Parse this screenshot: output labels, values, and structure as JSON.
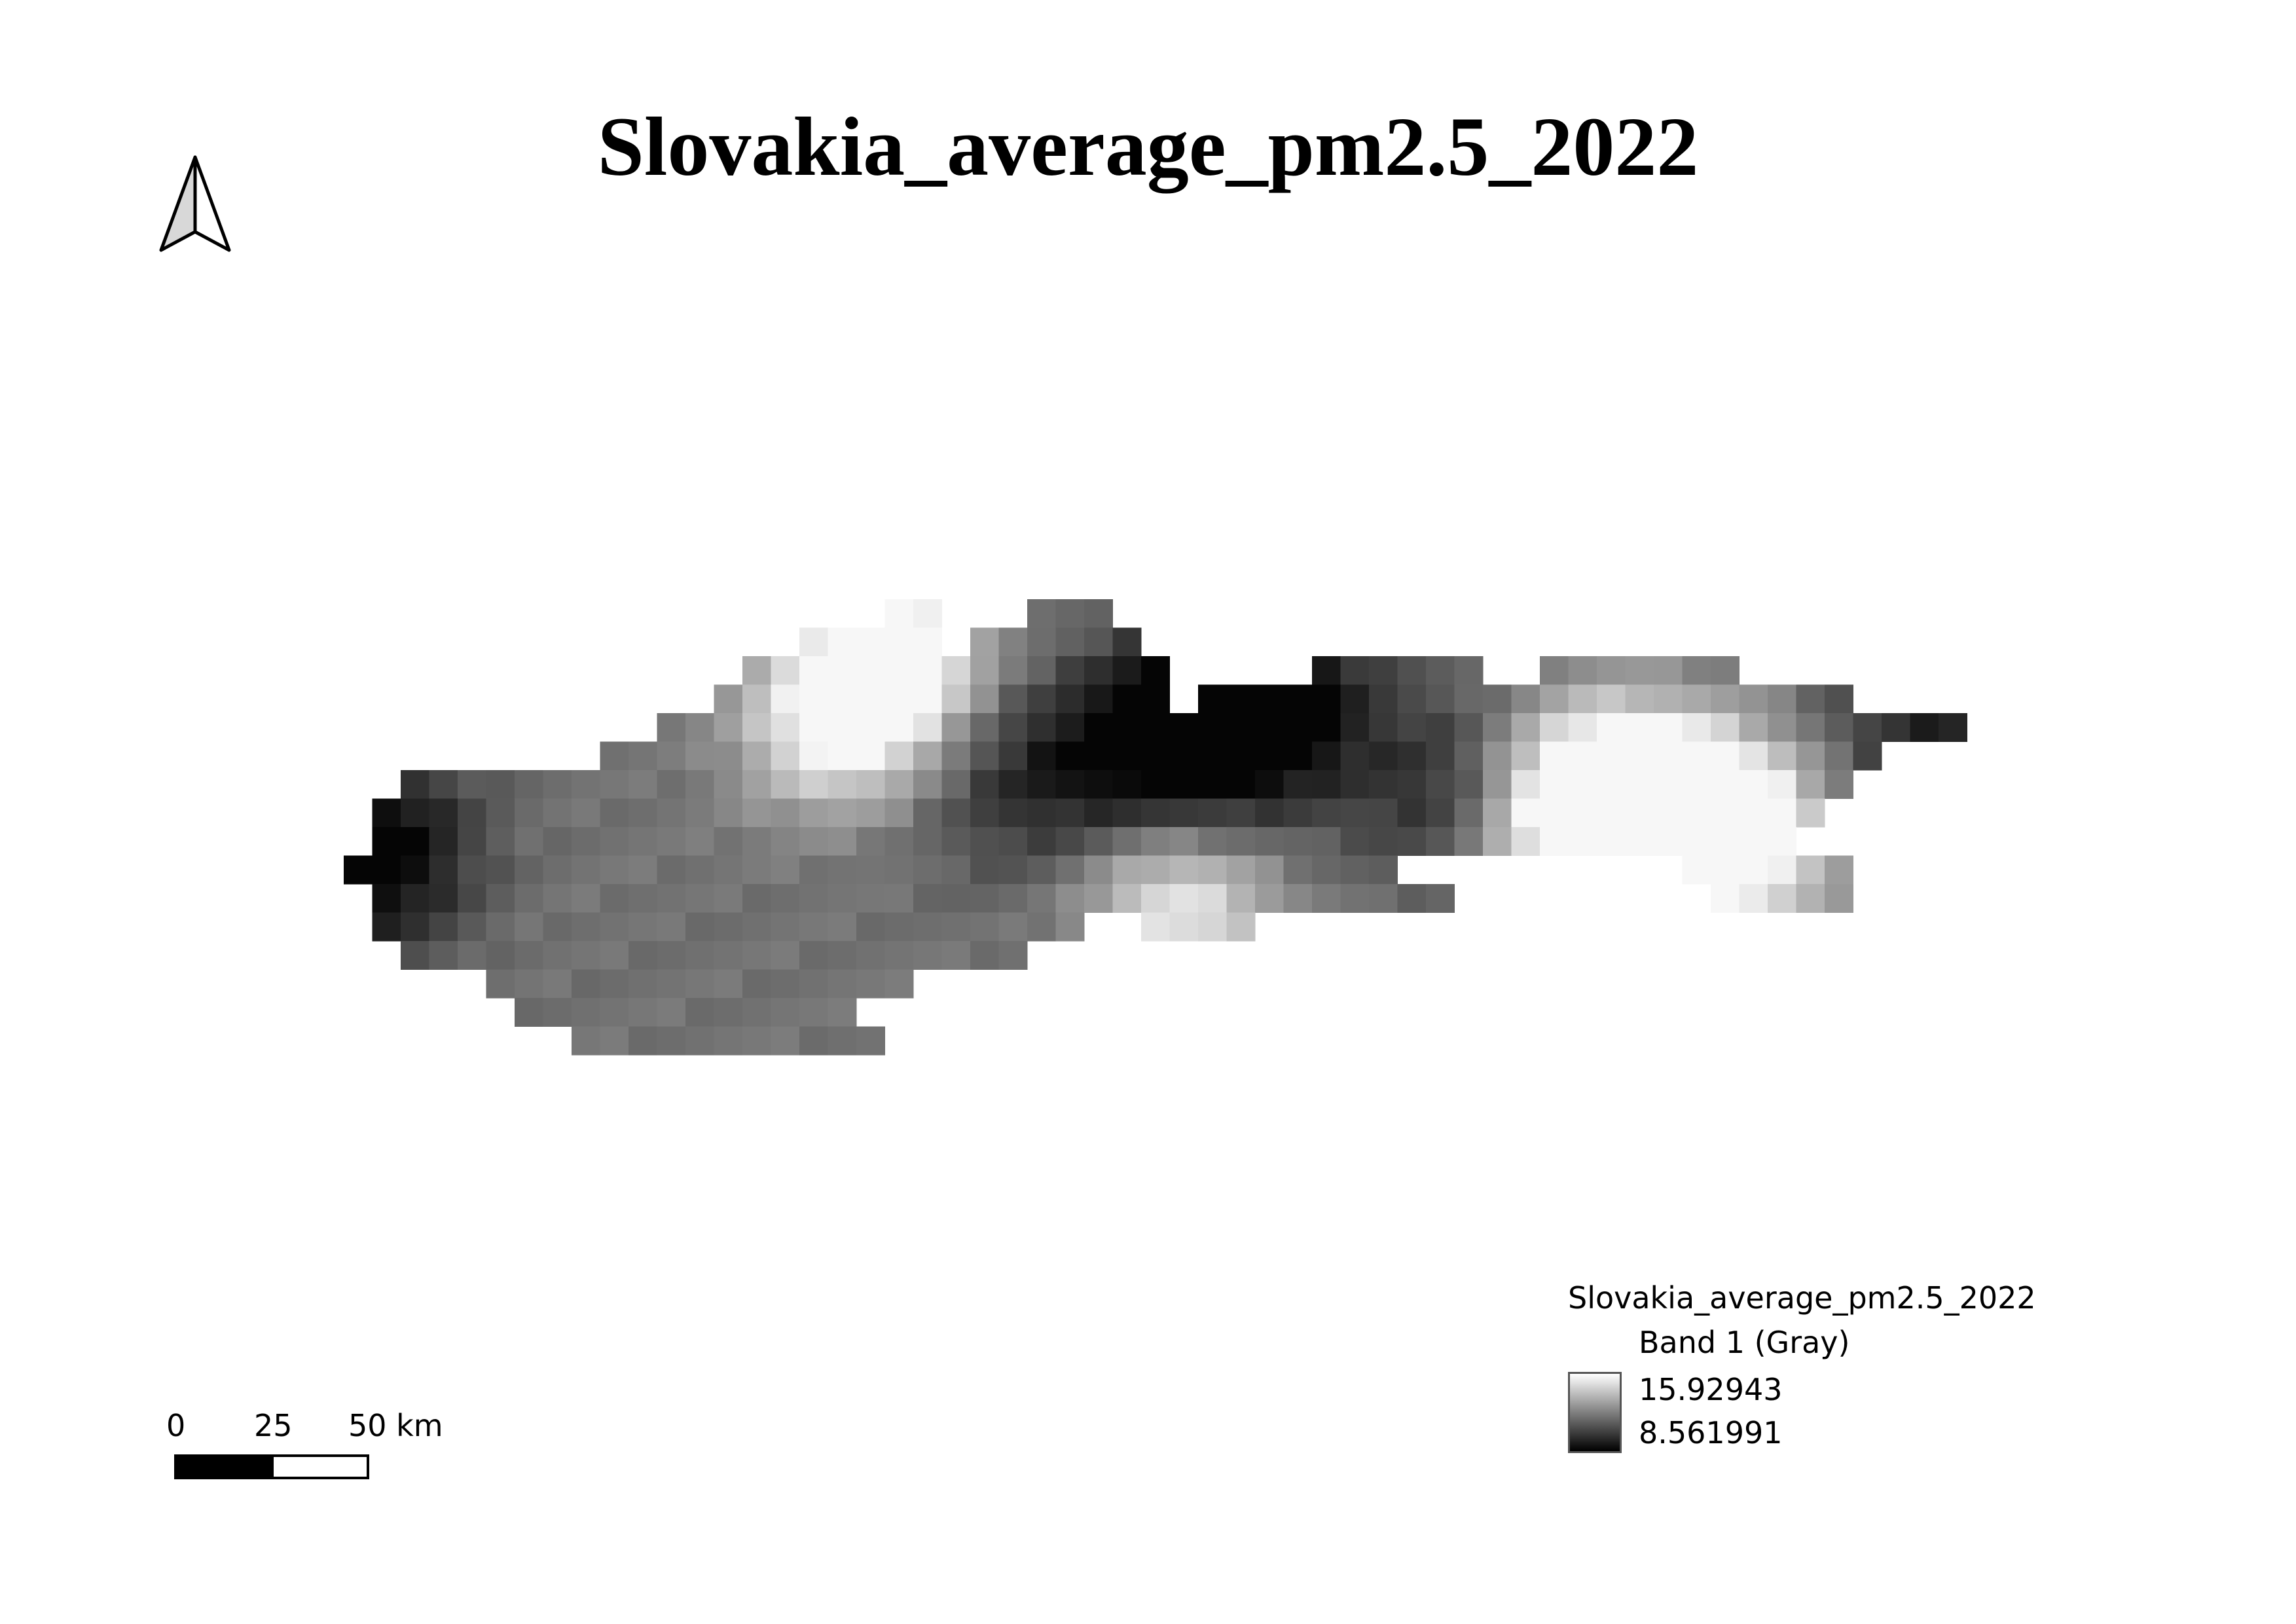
{
  "title": "Slovakia_average_pm2.5_2022",
  "north_arrow": {
    "icon": "north-arrow-icon"
  },
  "scale_bar": {
    "labels": [
      "0",
      "25",
      "50 km"
    ],
    "unit": "km"
  },
  "legend": {
    "layer_name": "Slovakia_average_pm2.5_2022",
    "band": "Band 1 (Gray)",
    "max_value": "15.92943",
    "min_value": "8.561991",
    "ramp_colors": {
      "high": "#ffffff",
      "low": "#000000"
    }
  }
}
